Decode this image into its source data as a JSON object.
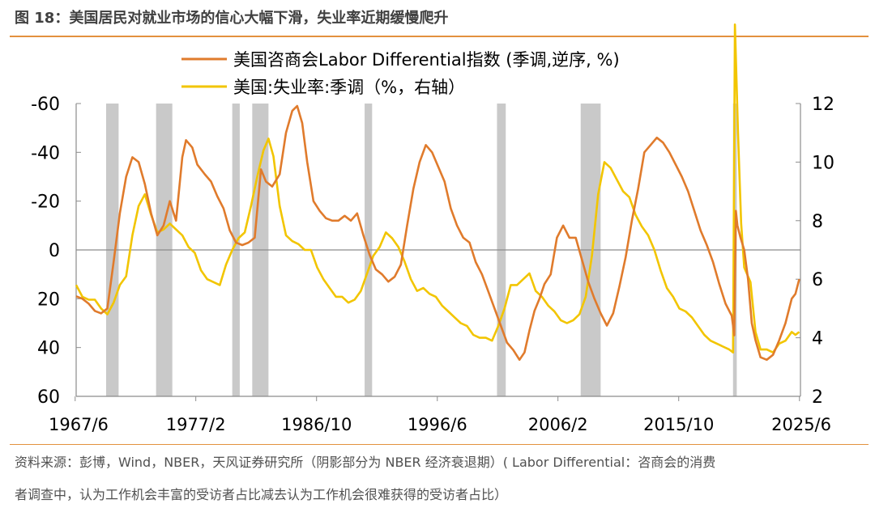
{
  "figure": {
    "title": "图 18：美国居民对就业市场的信心大幅下滑，失业率近期缓慢爬升",
    "source_line1": "资料来源：彭博，Wind，NBER，天风证券研究所（阴影部分为 NBER 经济衰退期）( Labor Differential：咨商会的消费",
    "source_line2": "者调查中，认为工作机会丰富的受访者占比减去认为工作机会很难获得的受访者占比）"
  },
  "chart_data": {
    "type": "line",
    "title": "",
    "xlabel": "",
    "ylabel": "",
    "x_range": [
      1967.5,
      2025.5
    ],
    "x_tick_labels": [
      "1967/6",
      "1977/2",
      "1986/10",
      "1996/6",
      "2006/2",
      "2015/10",
      "2025/6"
    ],
    "x_tick_values": [
      1967.42,
      1977.08,
      1986.75,
      1996.42,
      2006.08,
      2015.75,
      2025.42
    ],
    "left_axis": {
      "label": "",
      "ticks": [
        "-60",
        "-40",
        "-20",
        "0",
        "20",
        "40",
        "60"
      ],
      "range": [
        60,
        -60
      ],
      "reversed": true
    },
    "right_axis": {
      "label": "",
      "ticks": [
        "2",
        "4",
        "6",
        "8",
        "10",
        "12"
      ],
      "range": [
        2,
        12
      ]
    },
    "recessions": [
      [
        1969.9,
        1970.9
      ],
      [
        1973.9,
        1975.2
      ],
      [
        1980.0,
        1980.6
      ],
      [
        1981.6,
        1982.9
      ],
      [
        1990.6,
        1991.2
      ],
      [
        2001.2,
        2001.9
      ],
      [
        2007.9,
        2009.5
      ],
      [
        2020.1,
        2020.4
      ]
    ],
    "legend_position": "top",
    "series": [
      {
        "name": "美国咨商会Labor Differential指数 (季调,逆序, %)",
        "axis": "left",
        "color": "#e07b2c",
        "points": [
          [
            1967.5,
            19
          ],
          [
            1968.0,
            20
          ],
          [
            1968.5,
            22
          ],
          [
            1969.0,
            25
          ],
          [
            1969.5,
            26
          ],
          [
            1970.0,
            24
          ],
          [
            1970.5,
            5
          ],
          [
            1971.0,
            -15
          ],
          [
            1971.5,
            -30
          ],
          [
            1972.0,
            -38
          ],
          [
            1972.5,
            -36
          ],
          [
            1973.0,
            -27
          ],
          [
            1973.5,
            -15
          ],
          [
            1974.0,
            -6
          ],
          [
            1974.5,
            -10
          ],
          [
            1975.0,
            -20
          ],
          [
            1975.5,
            -12
          ],
          [
            1976.0,
            -38
          ],
          [
            1976.3,
            -45
          ],
          [
            1976.8,
            -42
          ],
          [
            1977.2,
            -35
          ],
          [
            1977.8,
            -31
          ],
          [
            1978.3,
            -28
          ],
          [
            1978.8,
            -22
          ],
          [
            1979.3,
            -17
          ],
          [
            1979.8,
            -8
          ],
          [
            1980.3,
            -3
          ],
          [
            1980.8,
            -2
          ],
          [
            1981.3,
            -3
          ],
          [
            1981.8,
            -5
          ],
          [
            1982.3,
            -33
          ],
          [
            1982.7,
            -28
          ],
          [
            1983.2,
            -26
          ],
          [
            1983.8,
            -31
          ],
          [
            1984.3,
            -48
          ],
          [
            1984.8,
            -57
          ],
          [
            1985.2,
            -59
          ],
          [
            1985.6,
            -52
          ],
          [
            1986.0,
            -36
          ],
          [
            1986.5,
            -20
          ],
          [
            1987.0,
            -16
          ],
          [
            1987.5,
            -13
          ],
          [
            1988.0,
            -12
          ],
          [
            1988.5,
            -12
          ],
          [
            1989.0,
            -14
          ],
          [
            1989.5,
            -12
          ],
          [
            1990.0,
            -15
          ],
          [
            1990.5,
            -6
          ],
          [
            1991.0,
            2
          ],
          [
            1991.5,
            8
          ],
          [
            1992.0,
            10
          ],
          [
            1992.5,
            13
          ],
          [
            1993.0,
            11
          ],
          [
            1993.5,
            6
          ],
          [
            1994.0,
            -10
          ],
          [
            1994.5,
            -25
          ],
          [
            1995.0,
            -36
          ],
          [
            1995.5,
            -43
          ],
          [
            1996.0,
            -40
          ],
          [
            1996.5,
            -34
          ],
          [
            1997.0,
            -28
          ],
          [
            1997.5,
            -17
          ],
          [
            1998.0,
            -10
          ],
          [
            1998.5,
            -5
          ],
          [
            1999.0,
            -3
          ],
          [
            1999.5,
            5
          ],
          [
            2000.0,
            10
          ],
          [
            2000.5,
            17
          ],
          [
            2001.0,
            24
          ],
          [
            2001.5,
            31
          ],
          [
            2002.0,
            38
          ],
          [
            2002.5,
            41
          ],
          [
            2003.0,
            45
          ],
          [
            2003.4,
            42
          ],
          [
            2003.8,
            33
          ],
          [
            2004.2,
            25
          ],
          [
            2004.6,
            20
          ],
          [
            2005.0,
            14
          ],
          [
            2005.5,
            10
          ],
          [
            2006.0,
            -5
          ],
          [
            2006.5,
            -10
          ],
          [
            2007.0,
            -5
          ],
          [
            2007.5,
            -5
          ],
          [
            2008.0,
            4
          ],
          [
            2008.5,
            13
          ],
          [
            2009.0,
            20
          ],
          [
            2009.5,
            26
          ],
          [
            2010.0,
            31
          ],
          [
            2010.5,
            26
          ],
          [
            2011.0,
            15
          ],
          [
            2011.5,
            3
          ],
          [
            2012.0,
            -12
          ],
          [
            2012.5,
            -25
          ],
          [
            2013.0,
            -40
          ],
          [
            2013.5,
            -43
          ],
          [
            2014.0,
            -46
          ],
          [
            2014.5,
            -44
          ],
          [
            2015.0,
            -40
          ],
          [
            2015.5,
            -35
          ],
          [
            2016.0,
            -30
          ],
          [
            2016.5,
            -24
          ],
          [
            2017.0,
            -16
          ],
          [
            2017.5,
            -8
          ],
          [
            2018.0,
            -2
          ],
          [
            2018.5,
            5
          ],
          [
            2019.0,
            14
          ],
          [
            2019.5,
            22
          ],
          [
            2020.0,
            27
          ],
          [
            2020.2,
            35
          ],
          [
            2020.33,
            -16
          ],
          [
            2020.45,
            -10
          ],
          [
            2020.7,
            -5
          ],
          [
            2021.0,
            0
          ],
          [
            2021.3,
            12
          ],
          [
            2021.6,
            30
          ],
          [
            2021.9,
            37
          ],
          [
            2022.3,
            44
          ],
          [
            2022.8,
            45
          ],
          [
            2023.3,
            43
          ],
          [
            2023.8,
            37
          ],
          [
            2024.3,
            30
          ],
          [
            2024.8,
            20
          ],
          [
            2025.1,
            18
          ],
          [
            2025.4,
            12
          ]
        ]
      },
      {
        "name": "美国:失业率:季调（%，右轴）",
        "axis": "right",
        "color": "#f2c500",
        "points": [
          [
            1967.5,
            5.8
          ],
          [
            1968.0,
            5.4
          ],
          [
            1968.5,
            5.3
          ],
          [
            1969.0,
            5.3
          ],
          [
            1969.5,
            5.0
          ],
          [
            1970.0,
            4.8
          ],
          [
            1970.5,
            5.2
          ],
          [
            1971.0,
            5.8
          ],
          [
            1971.5,
            6.1
          ],
          [
            1972.0,
            7.5
          ],
          [
            1972.5,
            8.5
          ],
          [
            1973.0,
            8.9
          ],
          [
            1973.5,
            8.2
          ],
          [
            1974.0,
            7.6
          ],
          [
            1974.5,
            7.7
          ],
          [
            1975.0,
            7.9
          ],
          [
            1975.5,
            7.7
          ],
          [
            1976.0,
            7.5
          ],
          [
            1976.5,
            7.1
          ],
          [
            1977.0,
            6.9
          ],
          [
            1977.5,
            6.3
          ],
          [
            1978.0,
            6.0
          ],
          [
            1978.5,
            5.9
          ],
          [
            1979.0,
            5.8
          ],
          [
            1979.5,
            6.5
          ],
          [
            1980.0,
            7.0
          ],
          [
            1980.5,
            7.4
          ],
          [
            1981.0,
            7.6
          ],
          [
            1981.5,
            8.5
          ],
          [
            1982.0,
            9.5
          ],
          [
            1982.5,
            10.4
          ],
          [
            1982.9,
            10.8
          ],
          [
            1983.3,
            10.2
          ],
          [
            1983.8,
            8.5
          ],
          [
            1984.3,
            7.5
          ],
          [
            1984.8,
            7.3
          ],
          [
            1985.3,
            7.2
          ],
          [
            1985.8,
            7.0
          ],
          [
            1986.3,
            7.0
          ],
          [
            1986.8,
            6.4
          ],
          [
            1987.3,
            6.0
          ],
          [
            1987.8,
            5.7
          ],
          [
            1988.3,
            5.4
          ],
          [
            1988.8,
            5.4
          ],
          [
            1989.3,
            5.2
          ],
          [
            1989.8,
            5.3
          ],
          [
            1990.3,
            5.6
          ],
          [
            1990.8,
            6.2
          ],
          [
            1991.3,
            6.8
          ],
          [
            1991.8,
            7.1
          ],
          [
            1992.3,
            7.6
          ],
          [
            1992.8,
            7.4
          ],
          [
            1993.3,
            7.1
          ],
          [
            1993.8,
            6.6
          ],
          [
            1994.3,
            6.0
          ],
          [
            1994.8,
            5.6
          ],
          [
            1995.3,
            5.7
          ],
          [
            1995.8,
            5.5
          ],
          [
            1996.3,
            5.4
          ],
          [
            1996.8,
            5.1
          ],
          [
            1997.3,
            4.9
          ],
          [
            1997.8,
            4.7
          ],
          [
            1998.3,
            4.5
          ],
          [
            1998.8,
            4.4
          ],
          [
            1999.3,
            4.1
          ],
          [
            1999.8,
            4.0
          ],
          [
            2000.3,
            4.0
          ],
          [
            2000.8,
            3.9
          ],
          [
            2001.3,
            4.4
          ],
          [
            2001.8,
            5.0
          ],
          [
            2002.3,
            5.8
          ],
          [
            2002.8,
            5.8
          ],
          [
            2003.3,
            6.0
          ],
          [
            2003.8,
            6.2
          ],
          [
            2004.3,
            5.6
          ],
          [
            2004.8,
            5.4
          ],
          [
            2005.3,
            5.1
          ],
          [
            2005.8,
            4.9
          ],
          [
            2006.3,
            4.6
          ],
          [
            2006.8,
            4.5
          ],
          [
            2007.3,
            4.6
          ],
          [
            2007.8,
            4.8
          ],
          [
            2008.3,
            5.4
          ],
          [
            2008.8,
            6.8
          ],
          [
            2009.3,
            8.9
          ],
          [
            2009.8,
            10.0
          ],
          [
            2010.3,
            9.8
          ],
          [
            2010.8,
            9.4
          ],
          [
            2011.3,
            9.0
          ],
          [
            2011.8,
            8.8
          ],
          [
            2012.3,
            8.2
          ],
          [
            2012.8,
            7.8
          ],
          [
            2013.3,
            7.5
          ],
          [
            2013.8,
            7.0
          ],
          [
            2014.3,
            6.3
          ],
          [
            2014.8,
            5.7
          ],
          [
            2015.3,
            5.4
          ],
          [
            2015.8,
            5.0
          ],
          [
            2016.3,
            4.9
          ],
          [
            2016.8,
            4.7
          ],
          [
            2017.3,
            4.4
          ],
          [
            2017.8,
            4.1
          ],
          [
            2018.3,
            3.9
          ],
          [
            2018.8,
            3.8
          ],
          [
            2019.3,
            3.7
          ],
          [
            2019.8,
            3.6
          ],
          [
            2020.1,
            3.5
          ],
          [
            2020.25,
            14.7
          ],
          [
            2020.5,
            11.0
          ],
          [
            2020.75,
            7.9
          ],
          [
            2021.0,
            6.4
          ],
          [
            2021.5,
            5.9
          ],
          [
            2021.9,
            4.2
          ],
          [
            2022.3,
            3.6
          ],
          [
            2022.8,
            3.6
          ],
          [
            2023.3,
            3.5
          ],
          [
            2023.8,
            3.8
          ],
          [
            2024.3,
            3.9
          ],
          [
            2024.8,
            4.2
          ],
          [
            2025.1,
            4.1
          ],
          [
            2025.4,
            4.2
          ]
        ]
      }
    ]
  }
}
